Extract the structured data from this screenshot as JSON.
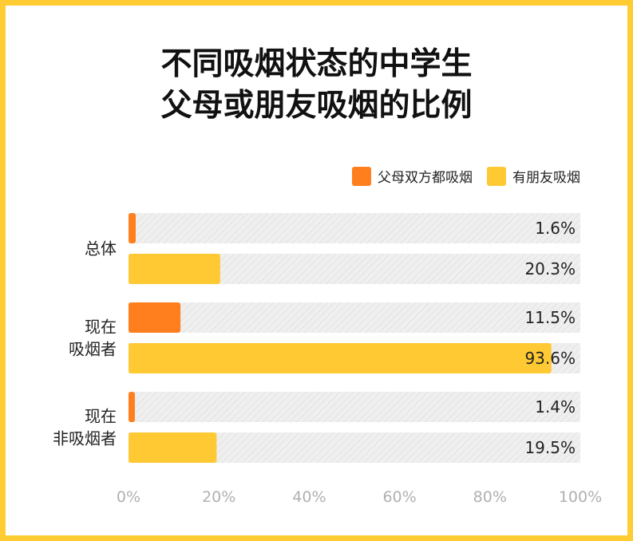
{
  "title_lines": [
    "不同吸烟状态的中学生",
    "父母或朋友吸烟的比例"
  ],
  "colors": {
    "parents": "#FF7F1E",
    "friends": "#FFC933",
    "track": "#EDEDED",
    "frame": "#FFCC33"
  },
  "chart_data": {
    "type": "bar",
    "orientation": "horizontal",
    "title": "不同吸烟状态的中学生父母或朋友吸烟的比例",
    "categories": [
      [
        "总体"
      ],
      [
        "现在",
        "吸烟者"
      ],
      [
        "现在",
        "非吸烟者"
      ]
    ],
    "series": [
      {
        "name": "父母双方都吸烟",
        "color": "#FF7F1E",
        "values": [
          1.6,
          11.5,
          1.4
        ],
        "labels": [
          "1.6%",
          "11.5%",
          "1.4%"
        ]
      },
      {
        "name": "有朋友吸烟",
        "color": "#FFC933",
        "values": [
          20.3,
          93.6,
          19.5
        ],
        "labels": [
          "20.3%",
          "93.6%",
          "19.5%"
        ]
      }
    ],
    "xlim": [
      0,
      100
    ],
    "xticks": [
      "0%",
      "20%",
      "40%",
      "60%",
      "80%",
      "100%"
    ],
    "legend": "top-right",
    "grid": false
  }
}
